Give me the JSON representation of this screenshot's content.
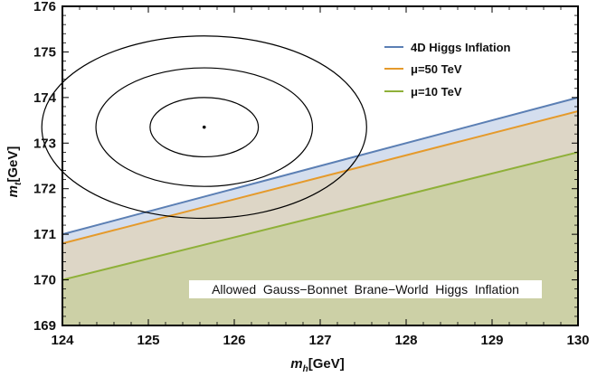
{
  "chart_data": {
    "type": "line",
    "xlabel": {
      "symbol": "m",
      "sub": "h",
      "unit": "[GeV]"
    },
    "ylabel": {
      "symbol": "m",
      "sub": "t",
      "unit": "[GeV]"
    },
    "xlim": [
      124,
      130
    ],
    "ylim": [
      169,
      176
    ],
    "x_ticks": [
      124,
      125,
      126,
      127,
      128,
      129,
      130
    ],
    "y_ticks": [
      169,
      170,
      171,
      172,
      173,
      174,
      175,
      176
    ],
    "grid": false,
    "legend_position": "top-right",
    "series": [
      {
        "name": "4D Higgs Inflation",
        "color": "#5b7fb4",
        "fill": "#d4deee",
        "points": [
          [
            124,
            171.0
          ],
          [
            130,
            174.0
          ]
        ]
      },
      {
        "name": "μ=50 TeV",
        "color": "#e59a2b",
        "fill": "#ddd6c6",
        "points": [
          [
            124,
            170.8
          ],
          [
            130,
            173.7
          ]
        ]
      },
      {
        "name": "μ=10 TeV",
        "color": "#8fb039",
        "fill": "#ccd0a6",
        "points": [
          [
            124,
            170.0
          ],
          [
            130,
            172.8
          ]
        ]
      }
    ],
    "central_point": [
      125.65,
      173.35
    ],
    "ellipses": [
      {
        "center": [
          125.65,
          173.35
        ],
        "rx": 0.63,
        "ry": 0.65
      },
      {
        "center": [
          125.65,
          173.35
        ],
        "rx": 1.26,
        "ry": 1.3
      },
      {
        "center": [
          125.65,
          173.35
        ],
        "rx": 1.89,
        "ry": 2.0
      }
    ],
    "annotation": "Allowed  Gauss−Bonnet  Brane−World  Higgs  Inflation",
    "annotation_position": {
      "x": 127.55,
      "y": 169.8
    }
  }
}
